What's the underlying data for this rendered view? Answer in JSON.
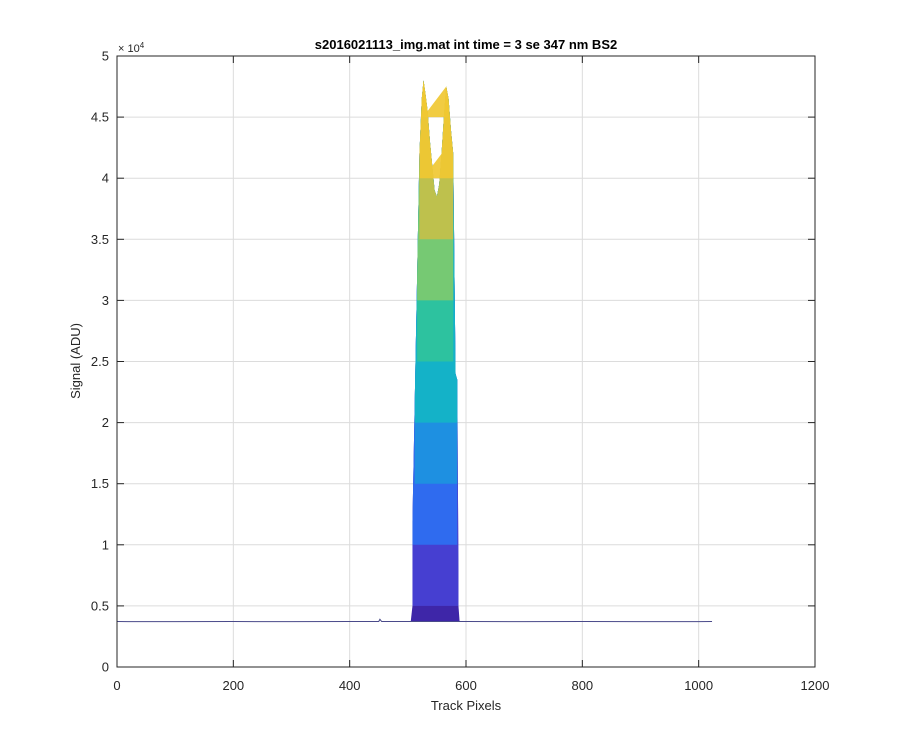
{
  "chart_data": {
    "type": "area",
    "title": "s2016021113_img.mat int time = 3 se  347 nm BS2",
    "xlabel": "Track Pixels",
    "ylabel": "Signal (ADU)",
    "xlim": [
      0,
      1200
    ],
    "ylim": [
      0,
      50000
    ],
    "xticks": [
      0,
      200,
      400,
      600,
      800,
      1000,
      1200
    ],
    "xtick_labels": [
      "0",
      "200",
      "400",
      "600",
      "800",
      "1000",
      "1200"
    ],
    "yticks": [
      0,
      5000,
      10000,
      15000,
      20000,
      25000,
      30000,
      35000,
      40000,
      45000,
      50000
    ],
    "ytick_labels": [
      "0",
      "0.5",
      "1",
      "1.5",
      "2",
      "2.5",
      "3",
      "3.5",
      "4",
      "4.5",
      "5"
    ],
    "y_exponent_label": "× 10",
    "y_exponent_power": "4",
    "grid": true,
    "colormap": [
      "#3e26a8",
      "#4540d4",
      "#2e6ff1",
      "#1d94e0",
      "#14b5c6",
      "#30c39b",
      "#7dca6f",
      "#c4c04a",
      "#f0c832"
    ],
    "contour_levels": [
      5000,
      10000,
      15000,
      20000,
      25000,
      30000,
      35000,
      40000,
      45000
    ],
    "baseline": {
      "color": "#4a4a8a",
      "x": [
        0,
        100,
        200,
        300,
        400,
        450,
        452,
        455,
        500,
        505,
        590,
        600,
        700,
        800,
        900,
        1000,
        1023
      ],
      "y": [
        3720,
        3710,
        3720,
        3715,
        3720,
        3720,
        3900,
        3720,
        3720,
        3720,
        3720,
        3720,
        3715,
        3720,
        3710,
        3715,
        3720
      ]
    },
    "peak": {
      "x": [
        505,
        508,
        512,
        516,
        520,
        524,
        527,
        530,
        534,
        538,
        542,
        546,
        550,
        554,
        558,
        562,
        566,
        570,
        574,
        578,
        582,
        585,
        587,
        589
      ],
      "y": [
        3720,
        12000,
        22000,
        32000,
        42000,
        46500,
        48000,
        47000,
        45500,
        43000,
        41000,
        39000,
        38500,
        39500,
        42000,
        45000,
        47500,
        46500,
        44000,
        42000,
        24000,
        23500,
        8000,
        3720
      ]
    }
  }
}
